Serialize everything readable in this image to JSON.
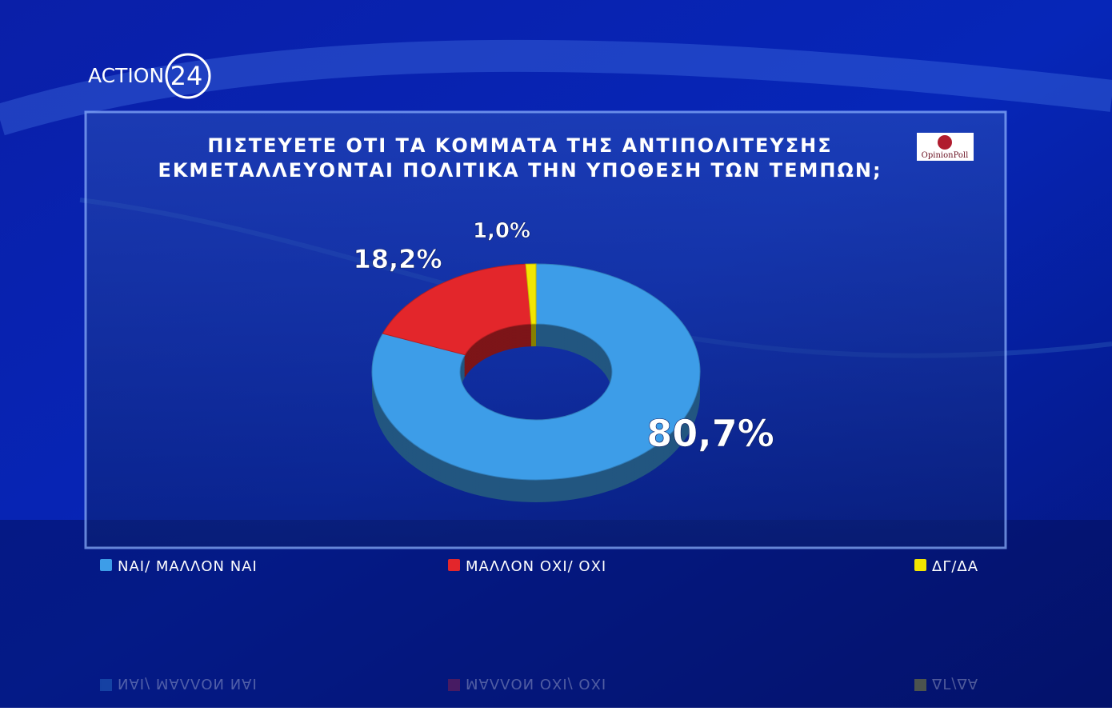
{
  "branding": {
    "channel": "ACTION",
    "channel_number": "24",
    "pollster": "OpinionPoll"
  },
  "chart_data": {
    "type": "donut",
    "title": [
      "ΠΙΣΤΕΥΕΤΕ ΟΤΙ ΤΑ ΚΟΜΜΑΤΑ ΤΗΣ ΑΝΤΙΠΟΛΙΤΕΥΣΗΣ",
      "ΕΚΜΕΤΑΛΛΕΥΟΝΤΑΙ ΠΟΛΙΤΙΚΑ ΤΗΝ ΥΠΟΘΕΣΗ ΤΩΝ ΤΕΜΠΩΝ;"
    ],
    "categories": [
      "ΝΑΙ/ ΜΑΛΛΟΝ ΝΑΙ",
      "ΜΑΛΛΟΝ ΟΧΙ/ ΟΧΙ",
      "ΔΓ/ΔΑ"
    ],
    "values": [
      80.7,
      18.2,
      1.0
    ],
    "value_labels": [
      "80,7%",
      "18,2%",
      "1,0%"
    ],
    "colors": [
      "#3d9de8",
      "#e3262b",
      "#f3e600"
    ],
    "legend": "bottom"
  }
}
